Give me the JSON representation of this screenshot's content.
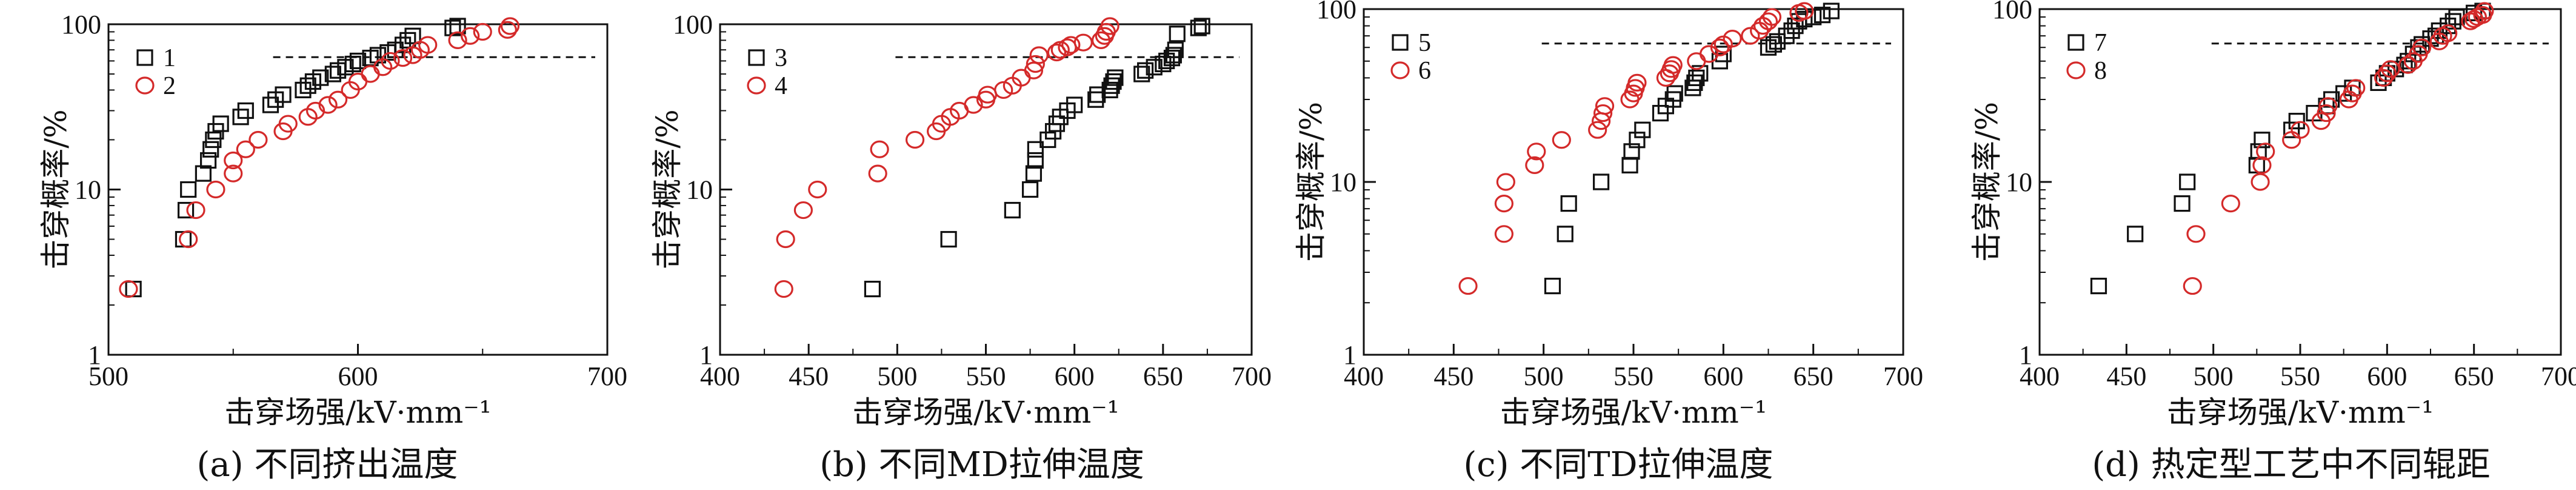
{
  "chart_data": [
    {
      "type": "scatter",
      "xlabel": "击穿场强/kV·mm⁻¹",
      "ylabel": "击穿概率/%",
      "caption": "(a) 不同挤出温度",
      "xlim": [
        500,
        700
      ],
      "xticks": [
        "500",
        "600",
        "700"
      ],
      "ylim": [
        1,
        100
      ],
      "yscale": "log",
      "yticks": [
        "1",
        "10",
        "100"
      ],
      "reference_line": 63.2,
      "legend_position": "top-left",
      "series": [
        {
          "name": "1",
          "marker": "square",
          "color": "#111111",
          "x": [
            510,
            530,
            531,
            532,
            538,
            540,
            541,
            542,
            543,
            545,
            553,
            555,
            565,
            567,
            570,
            578,
            580,
            582,
            585,
            590,
            592,
            595,
            598,
            600,
            605,
            608,
            612,
            615,
            618,
            620,
            622,
            638,
            640
          ],
          "y": [
            2.5,
            5,
            7.5,
            10,
            12.5,
            15,
            17.5,
            20,
            22.5,
            25,
            27.5,
            30,
            32.5,
            35,
            37.5,
            40,
            42.5,
            45,
            47.5,
            50,
            52.5,
            55,
            57.5,
            60,
            62.5,
            65,
            67.5,
            70,
            75,
            80,
            85,
            95,
            97.5
          ]
        },
        {
          "name": "2",
          "marker": "circle",
          "color": "#d42a2a",
          "x": [
            508,
            532,
            535,
            543,
            550,
            550,
            555,
            560,
            570,
            572,
            580,
            583,
            588,
            592,
            597,
            600,
            605,
            610,
            613,
            618,
            622,
            625,
            628,
            640,
            645,
            650,
            660,
            661
          ],
          "y": [
            2.5,
            5,
            7.5,
            10,
            12.5,
            15,
            17.5,
            20,
            22.5,
            25,
            27.5,
            30,
            32.5,
            35,
            40,
            45,
            50,
            55,
            60,
            62.5,
            65,
            70,
            75,
            80,
            85,
            90,
            92.5,
            97.5
          ]
        }
      ]
    },
    {
      "type": "scatter",
      "xlabel": "击穿场强/kV·mm⁻¹",
      "ylabel": "击穿概率/%",
      "caption": "(b) 不同MD拉伸温度",
      "xlim": [
        400,
        700
      ],
      "xticks": [
        "400",
        "450",
        "500",
        "550",
        "600",
        "650",
        "700"
      ],
      "ylim": [
        1,
        100
      ],
      "yscale": "log",
      "yticks": [
        "1",
        "10",
        "100"
      ],
      "reference_line": 63.2,
      "legend_position": "top-left",
      "series": [
        {
          "name": "3",
          "marker": "square",
          "color": "#111111",
          "x": [
            486,
            529,
            565,
            575,
            577,
            578,
            578,
            585,
            588,
            590,
            592,
            596,
            600,
            612,
            613,
            620,
            621,
            622,
            623,
            638,
            640,
            645,
            650,
            652,
            655,
            656,
            657,
            658,
            670,
            672
          ],
          "y": [
            2.5,
            5,
            7.5,
            10,
            12.5,
            15,
            17.5,
            20,
            22.5,
            25,
            27.5,
            30,
            32.5,
            35,
            37.5,
            40,
            42.5,
            45,
            47.5,
            50,
            52.5,
            55,
            57.5,
            60,
            62.5,
            65,
            70,
            87.5,
            95,
            97.5
          ]
        },
        {
          "name": "4",
          "marker": "circle",
          "color": "#d42a2a",
          "x": [
            436,
            437,
            447,
            455,
            489,
            490,
            510,
            522,
            525,
            530,
            535,
            543,
            550,
            551,
            560,
            565,
            570,
            577,
            578,
            580,
            590,
            592,
            596,
            598,
            605,
            615,
            617,
            618,
            620
          ],
          "y": [
            2.5,
            5,
            7.5,
            10,
            12.5,
            17.5,
            20,
            22.5,
            25,
            27.5,
            30,
            32.5,
            35,
            37.5,
            40,
            42.5,
            47.5,
            52.5,
            57.5,
            65,
            67.5,
            70,
            72.5,
            75,
            77.5,
            80,
            85,
            90,
            97.5
          ]
        }
      ]
    },
    {
      "type": "scatter",
      "xlabel": "击穿场强/kV·mm⁻¹",
      "ylabel": "击穿概率/%",
      "caption": "(c) 不同TD拉伸温度",
      "xlim": [
        400,
        700
      ],
      "xticks": [
        "400",
        "450",
        "500",
        "550",
        "600",
        "650",
        "700"
      ],
      "ylim": [
        1,
        100
      ],
      "yscale": "log",
      "yticks": [
        "1",
        "10",
        "100"
      ],
      "reference_line": 63.2,
      "legend_position": "top-left",
      "series": [
        {
          "name": "5",
          "marker": "square",
          "color": "#111111",
          "x": [
            505,
            512,
            514,
            532,
            548,
            549,
            552,
            555,
            565,
            568,
            572,
            573,
            583,
            584,
            585,
            587,
            598,
            600,
            625,
            628,
            630,
            635,
            638,
            640,
            642,
            645,
            650,
            655,
            660
          ],
          "y": [
            2.5,
            5,
            7.5,
            10,
            12.5,
            15,
            17.5,
            20,
            25,
            27.5,
            30,
            32.5,
            35,
            37.5,
            40,
            42.5,
            50,
            55,
            60,
            62.5,
            65,
            70,
            75,
            80,
            85,
            87.5,
            90,
            92.5,
            97.5
          ]
        },
        {
          "name": "6",
          "marker": "circle",
          "color": "#d42a2a",
          "x": [
            458,
            478,
            478,
            479,
            495,
            496,
            510,
            530,
            532,
            533,
            534,
            548,
            550,
            551,
            552,
            568,
            570,
            571,
            572,
            585,
            592,
            598,
            600,
            605,
            615,
            620,
            622,
            625,
            627,
            642,
            645
          ],
          "y": [
            2.5,
            5,
            7.5,
            10,
            12.5,
            15,
            17.5,
            20,
            22.5,
            25,
            27.5,
            30,
            32.5,
            35,
            37.5,
            40,
            42.5,
            45,
            47.5,
            50,
            55,
            60,
            62.5,
            67.5,
            70,
            75,
            80,
            85,
            90,
            95,
            97.5
          ]
        }
      ]
    },
    {
      "type": "scatter",
      "xlabel": "击穿场强/kV·mm⁻¹",
      "ylabel": "击穿概率/%",
      "caption": "(d) 热定型工艺中不同辊距",
      "xlim": [
        400,
        700
      ],
      "xticks": [
        "400",
        "450",
        "500",
        "550",
        "600",
        "650",
        "700"
      ],
      "ylim": [
        1,
        100
      ],
      "yscale": "log",
      "yticks": [
        "1",
        "10",
        "100"
      ],
      "reference_line": 63.2,
      "legend_position": "top-left",
      "series": [
        {
          "name": "7",
          "marker": "square",
          "color": "#111111",
          "x": [
            434,
            455,
            482,
            485,
            525,
            526,
            528,
            545,
            548,
            558,
            565,
            568,
            575,
            580,
            595,
            598,
            600,
            605,
            610,
            612,
            615,
            618,
            620,
            625,
            628,
            630,
            635,
            638,
            640,
            650,
            655
          ],
          "y": [
            2.5,
            5,
            7.5,
            10,
            12.5,
            15,
            17.5,
            20,
            22.5,
            25,
            27.5,
            30,
            32.5,
            35,
            37.5,
            40,
            42.5,
            45,
            47.5,
            50,
            55,
            60,
            62.5,
            67.5,
            70,
            75,
            80,
            85,
            90,
            95,
            97.5
          ]
        },
        {
          "name": "8",
          "marker": "circle",
          "color": "#d42a2a",
          "x": [
            488,
            490,
            510,
            527,
            528,
            530,
            545,
            550,
            562,
            565,
            566,
            578,
            580,
            582,
            598,
            600,
            602,
            612,
            615,
            618,
            620,
            630,
            632,
            635,
            648,
            650,
            652,
            655,
            656
          ],
          "y": [
            2.5,
            5,
            7.5,
            10,
            12.5,
            15,
            17.5,
            20,
            22.5,
            25,
            27.5,
            30,
            32.5,
            35,
            40,
            42.5,
            45,
            47.5,
            50,
            55,
            60,
            65,
            70,
            72.5,
            85,
            87.5,
            90,
            92.5,
            97.5
          ]
        }
      ]
    }
  ]
}
